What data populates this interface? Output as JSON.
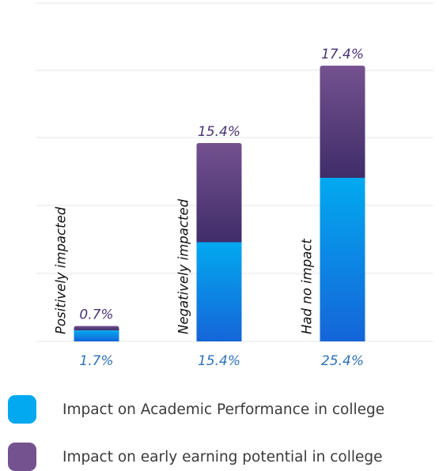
{
  "chart_data": {
    "type": "bar",
    "stacked": true,
    "categories": [
      "Positively impacted",
      "Negatively impacted",
      "Had no impact"
    ],
    "series": [
      {
        "name": "Impact on Academic Performance in college",
        "values": [
          1.7,
          15.4,
          25.4
        ],
        "labels": [
          "1.7%",
          "15.4%",
          "25.4%"
        ]
      },
      {
        "name": "Impact on early earning potential in college",
        "values": [
          0.7,
          15.4,
          17.4
        ],
        "labels": [
          "0.7%",
          "15.4%",
          "17.4%"
        ]
      }
    ],
    "grid": true,
    "legend_position": "bottom-left",
    "colors": {
      "academic_top": "#02a9f0",
      "academic_bottom": "#1565d8",
      "earning_top": "#74518f",
      "earning_bottom": "#3f2d69",
      "grid": "#e6e6e6",
      "bottom_label": "#2f72b8",
      "top_label": "#4a3275",
      "category_label": "#111111"
    }
  }
}
